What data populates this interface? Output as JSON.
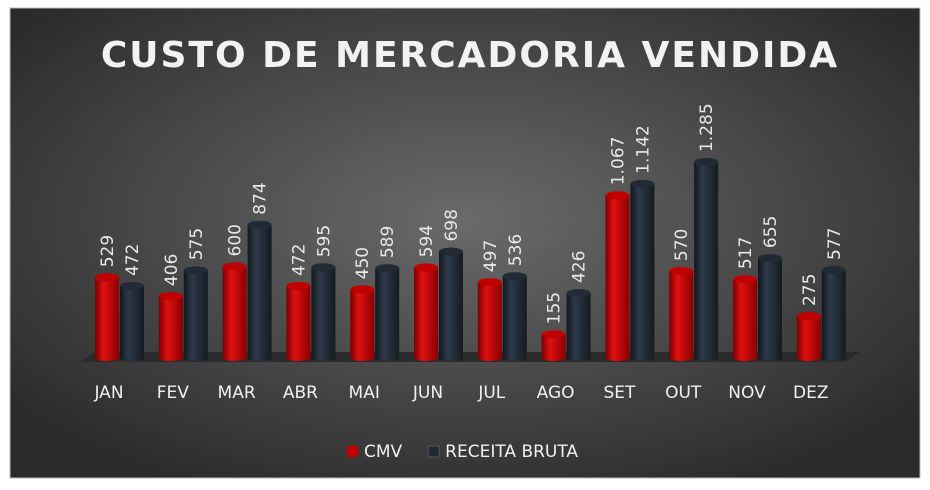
{
  "chart_data": {
    "type": "bar",
    "title": "CUSTO DE MERCADORIA VENDIDA",
    "categories": [
      "JAN",
      "FEV",
      "MAR",
      "ABR",
      "MAI",
      "JUN",
      "JUL",
      "AGO",
      "SET",
      "OUT",
      "NOV",
      "DEZ"
    ],
    "series": [
      {
        "name": "CMV",
        "color": "#c00000",
        "values": [
          529,
          406,
          600,
          472,
          450,
          594,
          497,
          155,
          1067,
          570,
          517,
          275
        ],
        "value_labels": [
          "529",
          "406",
          "600",
          "472",
          "450",
          "594",
          "497",
          "155",
          "1.067",
          "570",
          "517",
          "275"
        ]
      },
      {
        "name": "RECEITA BRUTA",
        "color": "#222a35",
        "values": [
          472,
          575,
          874,
          595,
          589,
          698,
          536,
          426,
          1142,
          1285,
          655,
          577
        ],
        "value_labels": [
          "472",
          "575",
          "874",
          "595",
          "589",
          "698",
          "536",
          "426",
          "1.142",
          "1.285",
          "655",
          "577"
        ]
      }
    ],
    "legend": "bottom"
  }
}
